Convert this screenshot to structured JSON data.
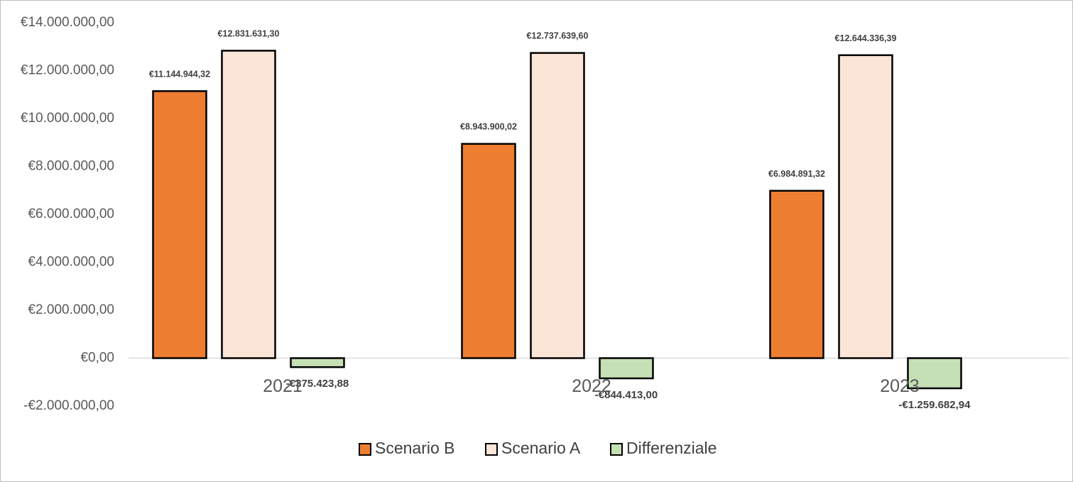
{
  "chart_data": {
    "type": "bar",
    "title": "",
    "xlabel": "",
    "ylabel": "",
    "categories": [
      "2021",
      "2022",
      "2023"
    ],
    "ylim": [
      -2000000,
      14000000
    ],
    "y_ticks": [
      14000000,
      12000000,
      10000000,
      8000000,
      6000000,
      4000000,
      2000000,
      0,
      -2000000
    ],
    "y_tick_labels": [
      "€14.000.000,00",
      "€12.000.000,00",
      "€10.000.000,00",
      "€8.000.000,00",
      "€6.000.000,00",
      "€4.000.000,00",
      "€2.000.000,00",
      "€0,00",
      "-€2.000.000,00"
    ],
    "grid": false,
    "legend_position": "bottom",
    "series": [
      {
        "name": "Scenario B",
        "color": "#ED7D31",
        "values": [
          11144944.32,
          8943900.02,
          6984891.32
        ],
        "value_labels": [
          "€11.144.944,32",
          "€8.943.900,02",
          "€6.984.891,32"
        ]
      },
      {
        "name": "Scenario A",
        "color": "#FBE5D6",
        "values": [
          12831631.3,
          12737639.6,
          12644336.39
        ],
        "value_labels": [
          "€12.831.631,30",
          "€12.737.639,60",
          "€12.644.336,39"
        ]
      },
      {
        "name": "Differenziale",
        "color": "#C5E0B4",
        "values": [
          -375423.88,
          -844413.0,
          -1259682.94
        ],
        "value_labels": [
          "-€375.423,88",
          "-€844.413,00",
          "-€1.259.682,94"
        ]
      }
    ]
  }
}
